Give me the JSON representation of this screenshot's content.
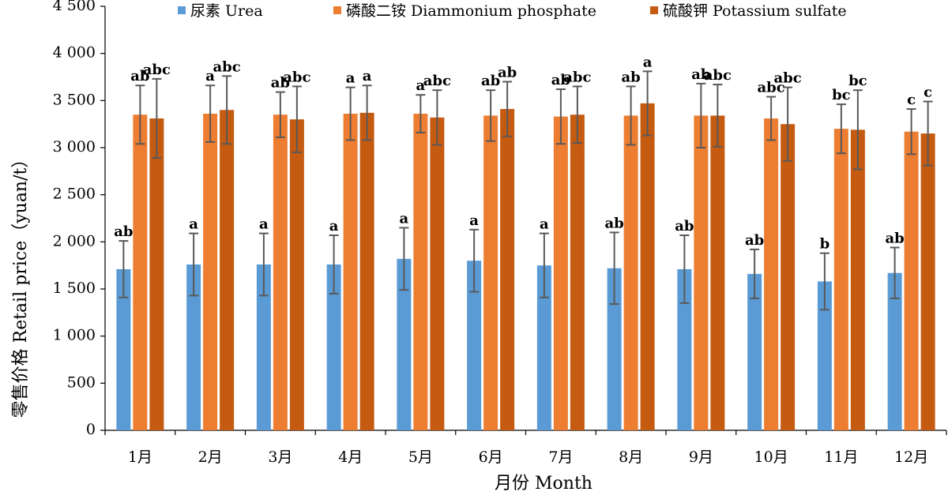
{
  "chart_data": {
    "type": "bar",
    "xlabel": "月份 Month",
    "ylabel": "零售价格 Retail price（yuan/t）",
    "ylim": [
      0,
      4500
    ],
    "yticks": [
      0,
      500,
      1000,
      1500,
      2000,
      2500,
      3000,
      3500,
      4000,
      4500
    ],
    "ytick_labels": [
      "0",
      "500",
      "1 000",
      "1 500",
      "2 000",
      "2 500",
      "3 000",
      "3 500",
      "4 000",
      "4 500"
    ],
    "categories": [
      "1月",
      "2月",
      "3月",
      "4月",
      "5月",
      "6月",
      "7月",
      "8月",
      "9月",
      "10月",
      "11月",
      "12月"
    ],
    "legend_position": "top",
    "grid": false,
    "error_bars": true,
    "series": [
      {
        "name": "尿素 Urea",
        "color": "#5b9bd5",
        "values": [
          1710,
          1760,
          1760,
          1760,
          1820,
          1800,
          1750,
          1720,
          1710,
          1660,
          1580,
          1670
        ],
        "errors": [
          300,
          330,
          330,
          310,
          330,
          330,
          340,
          380,
          360,
          260,
          300,
          270
        ],
        "labels": [
          "ab",
          "a",
          "a",
          "a",
          "a",
          "a",
          "a",
          "ab",
          "ab",
          "ab",
          "b",
          "ab"
        ]
      },
      {
        "name": "磷酸二铵 Diammonium phosphate",
        "color": "#ed7d31",
        "values": [
          3350,
          3360,
          3350,
          3360,
          3360,
          3340,
          3330,
          3340,
          3340,
          3310,
          3200,
          3170
        ],
        "errors": [
          310,
          300,
          240,
          280,
          200,
          270,
          290,
          310,
          340,
          230,
          260,
          240
        ],
        "labels": [
          "ab",
          "a",
          "ab",
          "a",
          "a",
          "ab",
          "ab",
          "ab",
          "ab",
          "abc",
          "bc",
          "c"
        ]
      },
      {
        "name": "硫酸钾 Potassium sulfate",
        "color": "#c55a11",
        "values": [
          3310,
          3400,
          3300,
          3370,
          3320,
          3410,
          3350,
          3470,
          3340,
          3250,
          3190,
          3150
        ],
        "errors": [
          420,
          360,
          350,
          290,
          290,
          290,
          300,
          340,
          330,
          390,
          420,
          340
        ],
        "labels": [
          "abc",
          "abc",
          "abc",
          "a",
          "abc",
          "ab",
          "abc",
          "a",
          "abc",
          "abc",
          "bc",
          "c"
        ]
      }
    ]
  }
}
